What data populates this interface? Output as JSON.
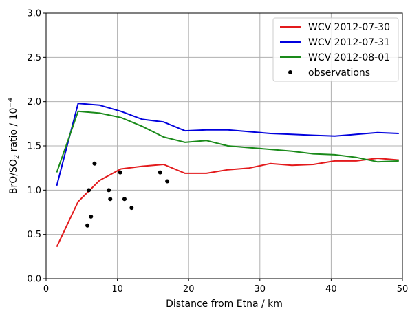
{
  "chart_data": {
    "type": "line",
    "xlabel": "Distance from Etna / km",
    "ylabel": {
      "prefix": "BrO/SO",
      "sub": "2",
      "mid": " ratio / 10",
      "sup": "−4"
    },
    "xlim": [
      0,
      50
    ],
    "ylim": [
      0,
      3.0
    ],
    "x_ticks": [
      0,
      10,
      20,
      30,
      40,
      50
    ],
    "y_ticks": [
      0.0,
      0.5,
      1.0,
      1.5,
      2.0,
      2.5,
      3.0
    ],
    "x_tick_labels": [
      "0",
      "10",
      "20",
      "30",
      "40",
      "50"
    ],
    "y_tick_labels": [
      "0.0",
      "0.5",
      "1.0",
      "1.5",
      "2.0",
      "2.5",
      "3.0"
    ],
    "grid": true,
    "legend_position": "top-right",
    "series": [
      {
        "name": "WCV 2012-07-30",
        "color": "#e31a1c",
        "x": [
          1.5,
          4.5,
          7.5,
          10.5,
          13.5,
          16.5,
          19.5,
          22.5,
          25.5,
          28.5,
          31.5,
          34.5,
          37.5,
          40.5,
          43.5,
          46.5,
          49.5
        ],
        "y": [
          0.36,
          0.87,
          1.11,
          1.24,
          1.27,
          1.29,
          1.19,
          1.19,
          1.23,
          1.25,
          1.3,
          1.28,
          1.29,
          1.33,
          1.33,
          1.36,
          1.34
        ]
      },
      {
        "name": "WCV 2012-07-31",
        "color": "#0000dd",
        "x": [
          1.5,
          4.5,
          7.5,
          10.5,
          13.5,
          16.5,
          19.5,
          22.5,
          25.5,
          28.5,
          31.5,
          34.5,
          37.5,
          40.5,
          43.5,
          46.5,
          49.5
        ],
        "y": [
          1.05,
          1.98,
          1.96,
          1.89,
          1.8,
          1.77,
          1.67,
          1.68,
          1.68,
          1.66,
          1.64,
          1.63,
          1.62,
          1.61,
          1.63,
          1.65,
          1.64
        ]
      },
      {
        "name": "WCV 2012-08-01",
        "color": "#1a8a1a",
        "x": [
          1.5,
          4.5,
          7.5,
          10.5,
          13.5,
          16.5,
          19.5,
          22.5,
          25.5,
          28.5,
          31.5,
          34.5,
          37.5,
          40.5,
          43.5,
          46.5,
          49.5
        ],
        "y": [
          1.2,
          1.89,
          1.87,
          1.82,
          1.72,
          1.6,
          1.54,
          1.56,
          1.5,
          1.48,
          1.46,
          1.44,
          1.41,
          1.4,
          1.37,
          1.32,
          1.33
        ]
      }
    ],
    "observations": {
      "name": "observations",
      "color": "#000000",
      "x": [
        5.8,
        6.0,
        6.3,
        6.8,
        8.8,
        9.0,
        10.4,
        11.0,
        12.0,
        16.0,
        17.0
      ],
      "y": [
        0.6,
        1.0,
        0.7,
        1.3,
        1.0,
        0.9,
        1.2,
        0.9,
        0.8,
        1.2,
        1.1
      ]
    }
  }
}
